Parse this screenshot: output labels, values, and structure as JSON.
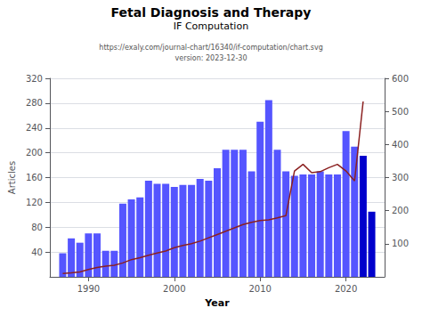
{
  "chart_data": {
    "type": "bar",
    "title": "Fetal Diagnosis and Therapy",
    "subtitle": "IF Computation",
    "annotations": [
      "https://exaly.com/journal-chart/16340/if-computation/chart.svg",
      "version: 2023-12-30"
    ],
    "xlabel": "Year",
    "ylabel": "Articles",
    "x": [
      1987,
      1988,
      1989,
      1990,
      1991,
      1992,
      1993,
      1994,
      1995,
      1996,
      1997,
      1998,
      1999,
      2000,
      2001,
      2002,
      2003,
      2004,
      2005,
      2006,
      2007,
      2008,
      2009,
      2010,
      2011,
      2012,
      2013,
      2014,
      2015,
      2016,
      2017,
      2018,
      2019,
      2020,
      2021,
      2022,
      2023
    ],
    "series": [
      {
        "type": "bar",
        "values": [
          38,
          62,
          55,
          70,
          70,
          42,
          42,
          118,
          125,
          128,
          155,
          150,
          150,
          145,
          148,
          148,
          158,
          155,
          175,
          205,
          205,
          205,
          170,
          250,
          285,
          205,
          170,
          163,
          165,
          165,
          170,
          165,
          165,
          235,
          210,
          195,
          105
        ],
        "colors": [
          "#5555ff",
          "#5555ff",
          "#5555ff",
          "#5555ff",
          "#5555ff",
          "#5555ff",
          "#5555ff",
          "#5555ff",
          "#5555ff",
          "#5555ff",
          "#5555ff",
          "#5555ff",
          "#5555ff",
          "#5555ff",
          "#5555ff",
          "#5555ff",
          "#5555ff",
          "#5555ff",
          "#5555ff",
          "#5555ff",
          "#5555ff",
          "#5555ff",
          "#5555ff",
          "#5555ff",
          "#5555ff",
          "#5555ff",
          "#5555ff",
          "#5555ff",
          "#5555ff",
          "#5555ff",
          "#5555ff",
          "#5555ff",
          "#5555ff",
          "#5555ff",
          "#5555ff",
          "#0000cc",
          "#0000cc"
        ]
      },
      {
        "type": "line",
        "axis": "y2",
        "color": "#8b2020",
        "values": [
          10,
          12,
          15,
          22,
          28,
          32,
          35,
          42,
          52,
          58,
          65,
          72,
          78,
          88,
          95,
          100,
          108,
          118,
          128,
          138,
          148,
          158,
          165,
          170,
          172,
          178,
          185,
          320,
          340,
          315,
          318,
          330,
          340,
          320,
          290,
          530,
          null
        ]
      }
    ],
    "xlim": [
      1985.5,
      2024.5
    ],
    "xticks": [
      1990,
      2000,
      2010,
      2020
    ],
    "ylim": [
      0,
      320
    ],
    "yticks": [
      40,
      80,
      120,
      160,
      200,
      240,
      280,
      320
    ],
    "y2lim": [
      0,
      600
    ],
    "y2ticks": [
      100,
      200,
      300,
      400,
      500,
      600
    ],
    "grid": true
  }
}
